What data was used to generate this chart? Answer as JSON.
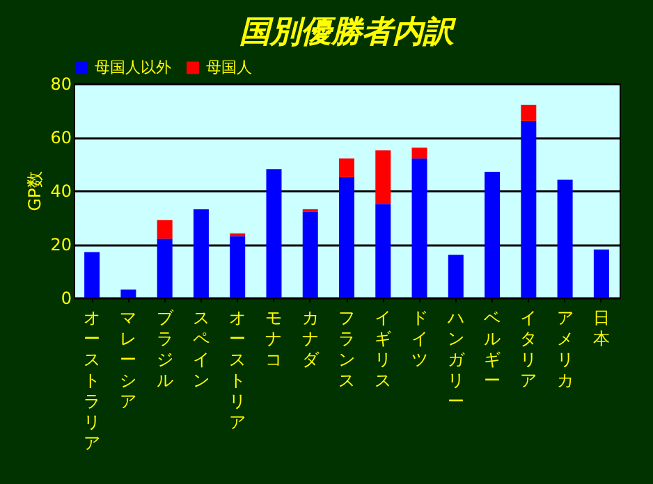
{
  "chart_data": {
    "type": "bar",
    "title": "国別優勝者内訳",
    "ylabel": "GP数",
    "categories": [
      "オーストラリア",
      "マレーシア",
      "ブラジル",
      "スペイン",
      "オーストリア",
      "モナコ",
      "カナダ",
      "フランス",
      "イギリス",
      "ドイツ",
      "ハンガリー",
      "ベルギー",
      "イタリア",
      "アメリカ",
      "日本"
    ],
    "series": [
      {
        "name": "母国人以外",
        "color": "#0000ff",
        "values": [
          17,
          3,
          22,
          33,
          23,
          48,
          32,
          45,
          35,
          52,
          16,
          47,
          66,
          44,
          18
        ]
      },
      {
        "name": "母国人",
        "color": "#ff0000",
        "values": [
          0,
          0,
          7,
          0,
          1,
          0,
          1,
          7,
          20,
          4,
          0,
          0,
          6,
          0,
          0
        ]
      }
    ],
    "stacked": true,
    "ylim": [
      0,
      80
    ],
    "yticks": [
      0,
      20,
      40,
      60,
      80
    ],
    "grid": "y",
    "legend": "top"
  }
}
